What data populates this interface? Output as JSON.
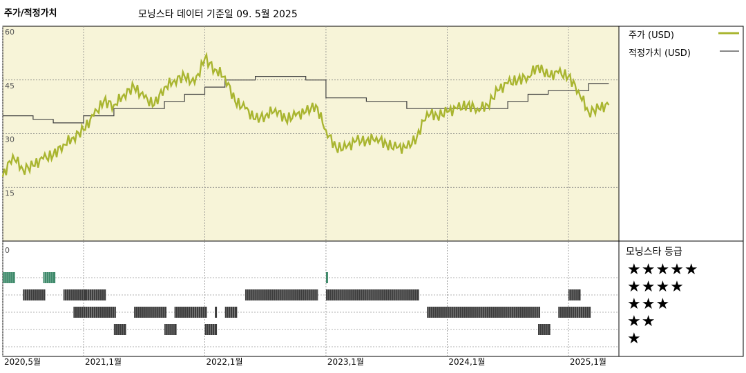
{
  "header": {
    "title": "주가/적정가치",
    "subtitle": "모닝스타 데이터 기준일 09. 5월 2025"
  },
  "legend": {
    "price_label": "주가 (USD)",
    "fair_label": "적정가치 (USD)",
    "stars_title": "모닝스타 등급",
    "star_rows": [
      "★★★★★",
      "★★★★",
      "★★★",
      "★★",
      "★"
    ]
  },
  "colors": {
    "panel_bg": "#f7f4d8",
    "price": "#a9b530",
    "fair": "#404040",
    "rating_dark": "#3c3c3c",
    "rating_green": "#3f8a6b",
    "grid": "#8a8a8a"
  },
  "chart_data": [
    {
      "type": "line",
      "y_ticks": [
        60,
        45,
        30,
        15
      ],
      "ylim": [
        0,
        60
      ],
      "x_ticks": [
        "2020,5월",
        "2021,1월",
        "2022,1월",
        "2023,1월",
        "2024,1월",
        "2025,1월"
      ],
      "x_tick_dates": [
        "2020-05",
        "2021-01",
        "2022-01",
        "2023-01",
        "2024-01",
        "2025-01"
      ],
      "series": [
        {
          "name": "주가 (USD)",
          "points": [
            [
              "2020-05",
              18
            ],
            [
              "2020-06",
              24
            ],
            [
              "2020-07",
              20
            ],
            [
              "2020-08",
              21
            ],
            [
              "2020-09",
              23
            ],
            [
              "2020-10",
              24
            ],
            [
              "2020-11",
              27
            ],
            [
              "2020-12",
              29
            ],
            [
              "2021-01",
              31
            ],
            [
              "2021-02",
              35
            ],
            [
              "2021-03",
              39
            ],
            [
              "2021-04",
              38
            ],
            [
              "2021-05",
              41
            ],
            [
              "2021-06",
              43
            ],
            [
              "2021-07",
              40
            ],
            [
              "2021-08",
              38
            ],
            [
              "2021-09",
              43
            ],
            [
              "2021-10",
              45
            ],
            [
              "2021-11",
              46
            ],
            [
              "2021-12",
              44
            ],
            [
              "2022-01",
              51
            ],
            [
              "2022-02",
              48
            ],
            [
              "2022-03",
              46
            ],
            [
              "2022-04",
              39
            ],
            [
              "2022-05",
              37
            ],
            [
              "2022-06",
              34
            ],
            [
              "2022-07",
              35
            ],
            [
              "2022-08",
              37
            ],
            [
              "2022-09",
              34
            ],
            [
              "2022-10",
              35
            ],
            [
              "2022-11",
              36
            ],
            [
              "2022-12",
              38
            ],
            [
              "2023-01",
              31
            ],
            [
              "2023-02",
              26
            ],
            [
              "2023-03",
              26
            ],
            [
              "2023-04",
              28
            ],
            [
              "2023-05",
              28
            ],
            [
              "2023-06",
              29
            ],
            [
              "2023-07",
              27
            ],
            [
              "2023-08",
              26
            ],
            [
              "2023-09",
              26
            ],
            [
              "2023-10",
              29
            ],
            [
              "2023-11",
              36
            ],
            [
              "2023-12",
              35
            ],
            [
              "2024-01",
              36
            ],
            [
              "2024-02",
              37
            ],
            [
              "2024-03",
              38
            ],
            [
              "2024-04",
              37
            ],
            [
              "2024-05",
              38
            ],
            [
              "2024-06",
              42
            ],
            [
              "2024-07",
              44
            ],
            [
              "2024-08",
              45
            ],
            [
              "2024-09",
              46
            ],
            [
              "2024-10",
              49
            ],
            [
              "2024-11",
              46
            ],
            [
              "2024-12",
              47
            ],
            [
              "2025-01",
              46
            ],
            [
              "2025-02",
              42
            ],
            [
              "2025-03",
              36
            ],
            [
              "2025-04",
              37
            ],
            [
              "2025-05",
              38
            ]
          ]
        },
        {
          "name": "적정가치 (USD)",
          "steps": [
            [
              "2020-05",
              35
            ],
            [
              "2020-08",
              34
            ],
            [
              "2020-10",
              33
            ],
            [
              "2021-01",
              35
            ],
            [
              "2021-04",
              37
            ],
            [
              "2021-09",
              39
            ],
            [
              "2021-11",
              41
            ],
            [
              "2022-01",
              43
            ],
            [
              "2022-03",
              45
            ],
            [
              "2022-06",
              46
            ],
            [
              "2022-11",
              45
            ],
            [
              "2023-01",
              40
            ],
            [
              "2023-05",
              39
            ],
            [
              "2023-09",
              37
            ],
            [
              "2024-07",
              39
            ],
            [
              "2024-09",
              41
            ],
            [
              "2024-11",
              42
            ],
            [
              "2025-03",
              44
            ],
            [
              "2025-05",
              44
            ]
          ]
        }
      ]
    },
    {
      "type": "heatmap",
      "rows": [
        "★★★★★",
        "★★★★",
        "★★★",
        "★★",
        "★"
      ],
      "periods": [
        {
          "star": 5,
          "start": "2020-05",
          "end": "2020-06",
          "color": "green"
        },
        {
          "star": 5,
          "start": "2020-09",
          "end": "2020-10",
          "color": "green"
        },
        {
          "star": 5,
          "start": "2023-01",
          "end": "2023-01",
          "color": "green"
        },
        {
          "star": 4,
          "start": "2020-07",
          "end": "2020-09",
          "color": "dark"
        },
        {
          "star": 4,
          "start": "2020-11",
          "end": "2021-03",
          "color": "dark"
        },
        {
          "star": 4,
          "start": "2021-01",
          "end": "2021-01",
          "color": "dark"
        },
        {
          "star": 4,
          "start": "2022-05",
          "end": "2022-12",
          "color": "dark"
        },
        {
          "star": 4,
          "start": "2023-01",
          "end": "2023-10",
          "color": "dark"
        },
        {
          "star": 4,
          "start": "2025-01",
          "end": "2025-02",
          "color": "dark"
        },
        {
          "star": 3,
          "start": "2020-12",
          "end": "2021-04",
          "color": "dark"
        },
        {
          "star": 3,
          "start": "2021-06",
          "end": "2021-09",
          "color": "dark"
        },
        {
          "star": 3,
          "start": "2021-10",
          "end": "2022-01",
          "color": "dark"
        },
        {
          "star": 3,
          "start": "2022-02",
          "end": "2022-02",
          "color": "dark"
        },
        {
          "star": 3,
          "start": "2022-03",
          "end": "2022-04",
          "color": "dark"
        },
        {
          "star": 3,
          "start": "2023-11",
          "end": "2024-10",
          "color": "dark"
        },
        {
          "star": 3,
          "start": "2024-12",
          "end": "2025-03",
          "color": "dark"
        },
        {
          "star": 2,
          "start": "2021-04",
          "end": "2021-05",
          "color": "dark"
        },
        {
          "star": 2,
          "start": "2021-09",
          "end": "2021-10",
          "color": "dark"
        },
        {
          "star": 2,
          "start": "2022-01",
          "end": "2022-02",
          "color": "dark"
        },
        {
          "star": 2,
          "start": "2024-10",
          "end": "2024-11",
          "color": "dark"
        }
      ]
    }
  ],
  "rating_zero_label": "0"
}
